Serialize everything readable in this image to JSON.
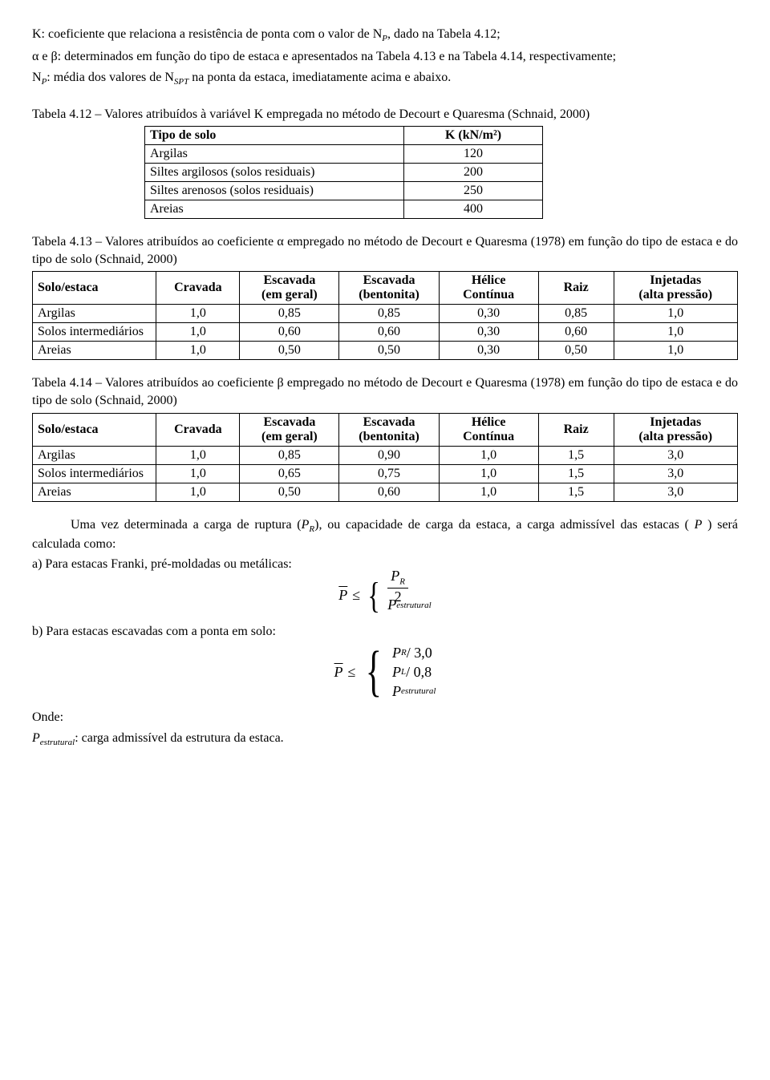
{
  "intro": {
    "l1": "K: coeficiente que relaciona a resistência de ponta com o valor de N",
    "l1_sub": "P",
    "l1_tail": ", dado na Tabela 4.12;",
    "l2": "α e β: determinados em função do tipo de estaca e apresentados na Tabela 4.13 e na Tabela 4.14, respectivamente;",
    "l3a": "N",
    "l3a_sub": "P",
    "l3b": ": média dos valores de N",
    "l3b_sub": "SPT",
    "l3c": " na ponta da estaca, imediatamente acima e abaixo."
  },
  "table_k": {
    "caption": "Tabela 4.12 – Valores atribuídos à variável K empregada no método de Decourt e Quaresma (Schnaid, 2000)",
    "headers": {
      "solo": "Tipo de solo",
      "k": "K (kN/m²)"
    },
    "rows": [
      {
        "solo": "Argilas",
        "k": "120"
      },
      {
        "solo": "Siltes argilosos (solos residuais)",
        "k": "200"
      },
      {
        "solo": "Siltes arenosos (solos residuais)",
        "k": "250"
      },
      {
        "solo": "Areias",
        "k": "400"
      }
    ]
  },
  "table_alpha": {
    "caption": "Tabela 4.13 – Valores atribuídos ao coeficiente α empregado no método de Decourt e Quaresma (1978) em função do tipo de estaca e do tipo de solo (Schnaid, 2000)",
    "headers": {
      "solo": "Solo/estaca",
      "crav": "Cravada",
      "esc1a": "Escavada",
      "esc1b": "(em geral)",
      "esc2a": "Escavada",
      "esc2b": "(bentonita)",
      "hel1": "Hélice",
      "hel2": "Contínua",
      "raiz": "Raiz",
      "inj1": "Injetadas",
      "inj2": "(alta pressão)"
    },
    "rows": [
      {
        "solo": "Argilas",
        "crav": "1,0",
        "esc1": "0,85",
        "esc2": "0,85",
        "hel": "0,30",
        "raiz": "0,85",
        "inj": "1,0"
      },
      {
        "solo": "Solos intermediários",
        "crav": "1,0",
        "esc1": "0,60",
        "esc2": "0,60",
        "hel": "0,30",
        "raiz": "0,60",
        "inj": "1,0"
      },
      {
        "solo": "Areias",
        "crav": "1,0",
        "esc1": "0,50",
        "esc2": "0,50",
        "hel": "0,30",
        "raiz": "0,50",
        "inj": "1,0"
      }
    ]
  },
  "table_beta": {
    "caption": "Tabela 4.14 – Valores atribuídos ao coeficiente β empregado no método de Decourt e Quaresma (1978) em função do tipo de estaca e do tipo de solo (Schnaid, 2000)",
    "headers": {
      "solo": "Solo/estaca",
      "crav": "Cravada",
      "esc1a": "Escavada",
      "esc1b": "(em geral)",
      "esc2a": "Escavada",
      "esc2b": "(bentonita)",
      "hel1": "Hélice",
      "hel2": "Contínua",
      "raiz": "Raiz",
      "inj1": "Injetadas",
      "inj2": "(alta pressão)"
    },
    "rows": [
      {
        "solo": "Argilas",
        "crav": "1,0",
        "esc1": "0,85",
        "esc2": "0,90",
        "hel": "1,0",
        "raiz": "1,5",
        "inj": "3,0"
      },
      {
        "solo": "Solos intermediários",
        "crav": "1,0",
        "esc1": "0,65",
        "esc2": "0,75",
        "hel": "1,0",
        "raiz": "1,5",
        "inj": "3,0"
      },
      {
        "solo": "Areias",
        "crav": "1,0",
        "esc1": "0,50",
        "esc2": "0,60",
        "hel": "1,0",
        "raiz": "1,5",
        "inj": "3,0"
      }
    ]
  },
  "after": {
    "p1a": "Uma vez determinada a carga de ruptura (",
    "p1b": "P",
    "p1b_sub": "R",
    "p1c": "), ou capacidade de carga da estaca, a carga admissível das estacas ( ",
    "p1_pbar": "P",
    "p1d": " ) será calculada como:",
    "a_label": "a)  Para estacas Franki, pré-moldadas ou metálicas:",
    "b_label": "b)  Para estacas escavadas com a ponta em solo:",
    "eq_a": {
      "pbar": "P",
      "le": "≤",
      "pr": "P",
      "pr_sub": "R",
      "two": "2",
      "pest": "P",
      "pest_sub": "estrutural"
    },
    "eq_b": {
      "pbar": "P",
      "le": "≤",
      "l1_p": "P",
      "l1_sub": "R",
      "l1_div": " / 3,0",
      "l2_p": "P",
      "l2_sub": "L",
      "l2_div": " / 0,8",
      "l3_p": "P",
      "l3_sub": "estrutural"
    },
    "onde": "Onde:",
    "pest_a": "P",
    "pest_sub": "estrutural",
    "pest_b": ": carga admissível da estrutura da estaca."
  }
}
